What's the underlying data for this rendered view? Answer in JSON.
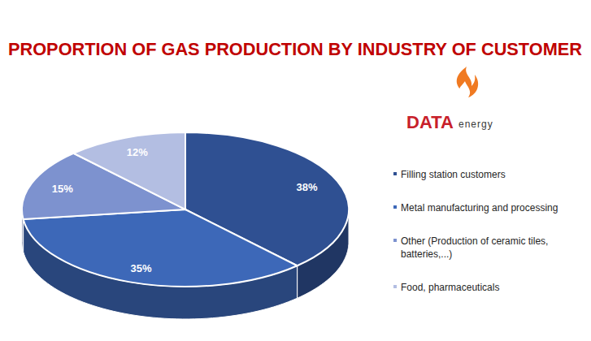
{
  "chart_data": {
    "type": "pie",
    "title": "PROPORTION OF GAS PRODUCTION BY INDUSTRY OF CUSTOMER",
    "categories": [
      "Filling station customers",
      "Metal manufacturing and processing",
      "Other (Production of ceramic tiles, batteries,...)",
      "Food, pharmaceuticals"
    ],
    "values": [
      38,
      35,
      15,
      12
    ],
    "value_labels": [
      "38%",
      "35%",
      "15%",
      "12%"
    ],
    "colors": [
      "#2f5092",
      "#3d68b8",
      "#7d92cf",
      "#b3bee2"
    ],
    "data_labels": true,
    "legend": "right",
    "annotations": [
      "DATA",
      "energy"
    ]
  }
}
